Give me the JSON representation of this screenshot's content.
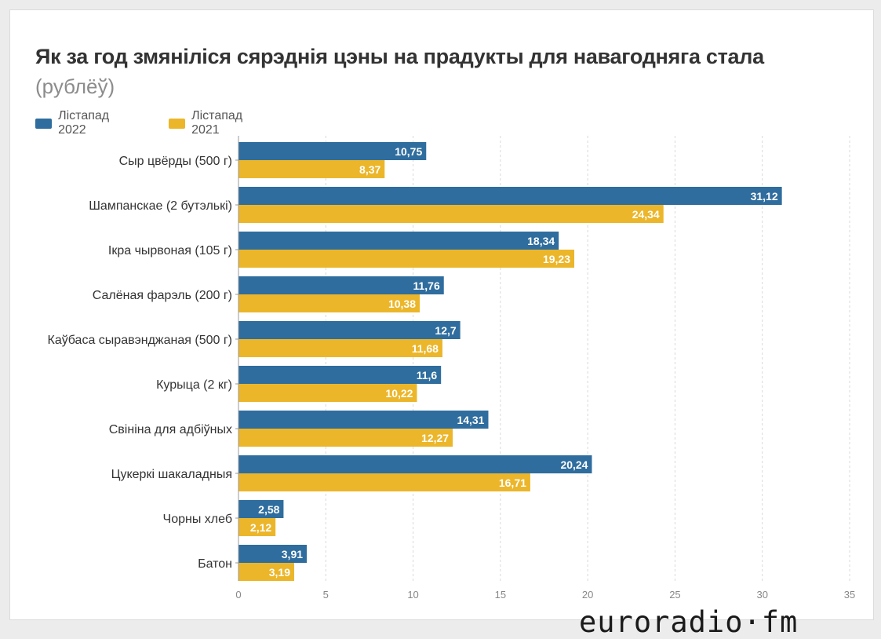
{
  "chart_data": {
    "type": "bar",
    "orientation": "horizontal",
    "title": "Як за год змяніліся сярэднія цэны на прадукты для навагодняга стала",
    "subtitle": "(рублёў)",
    "categories": [
      "Сыр цвёрды (500 г)",
      "Шампанскае (2 бутэлькі)",
      "Ікра чырвоная (105 г)",
      "Салёная фарэль (200 г)",
      "Каўбаса сыравэнджаная (500 г)",
      "Курыца (2 кг)",
      "Свініна для адбіўных",
      "Цукеркі шакаладныя",
      "Чорны хлеб",
      "Батон"
    ],
    "series": [
      {
        "name": "Лістапад 2022",
        "color": "#2f6d9e",
        "values": [
          10.75,
          31.12,
          18.34,
          11.76,
          12.7,
          11.6,
          14.31,
          20.24,
          2.58,
          3.91
        ],
        "labels": [
          "10,75",
          "31,12",
          "18,34",
          "11,76",
          "12,7",
          "11,6",
          "14,31",
          "20,24",
          "2,58",
          "3,91"
        ]
      },
      {
        "name": "Лістапад 2021",
        "color": "#ecb62a",
        "values": [
          8.37,
          24.34,
          19.23,
          10.38,
          11.68,
          10.22,
          12.27,
          16.71,
          2.12,
          3.19
        ],
        "labels": [
          "8,37",
          "24,34",
          "19,23",
          "10,38",
          "11,68",
          "10,22",
          "12,27",
          "16,71",
          "2,12",
          "3,19"
        ]
      }
    ],
    "xlim": [
      0,
      35
    ],
    "xticks": [
      0,
      5,
      10,
      15,
      20,
      25,
      30,
      35
    ],
    "grid": true,
    "legend_position": "top-left"
  },
  "logo": {
    "text": "euroradio·fm"
  }
}
